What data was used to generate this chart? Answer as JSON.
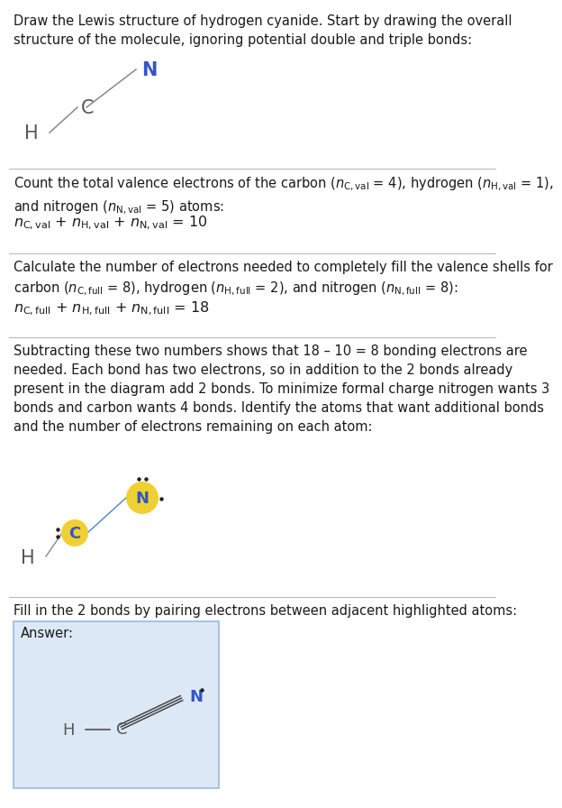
{
  "bg_color": "#ffffff",
  "text_color": "#1a1a1a",
  "N_color": "#3355cc",
  "C_color": "#555555",
  "H_color": "#555555",
  "bond_color": "#888888",
  "highlight_fill": "#f0d030",
  "highlight_label_color": "#3355cc",
  "answer_box_bg": "#dce8f5",
  "answer_box_border": "#99bbdd",
  "sep_color": "#bbbbbb",
  "dot_color": "#222222",
  "sec1_title": "Draw the Lewis structure of hydrogen cyanide. Start by drawing the overall\nstructure of the molecule, ignoring potential double and triple bonds:",
  "sec2_body": "Count the total valence electrons of the carbon (n_{C,val} = 4), hydrogen (n_{H,val} = 1),\nand nitrogen (n_{N,val} = 5) atoms:",
  "sec2_eq": "n_{C,val} + n_{H,val} + n_{N,val} = 10",
  "sec3_body": "Calculate the number of electrons needed to completely fill the valence shells for\ncarbon (n_{C,full} = 8), hydrogen (n_{H,full} = 2), and nitrogen (n_{N,full} = 8):",
  "sec3_eq": "n_{C,full} + n_{H,full} + n_{N,full} = 18",
  "sec4_body": "Subtracting these two numbers shows that 18 – 10 = 8 bonding electrons are\nneeded. Each bond has two electrons, so in addition to the 2 bonds already\npresent in the diagram add 2 bonds. To minimize formal charge nitrogen wants 3\nbonds and carbon wants 4 bonds. Identify the atoms that want additional bonds\nand the number of electrons remaining on each atom:",
  "sec5_label": "Fill in the 2 bonds by pairing electrons between adjacent highlighted atoms:",
  "answer_label": "Answer:",
  "font_size_body": 10.5,
  "font_size_eq": 11.5,
  "font_size_atom_large": 15,
  "font_size_atom_circle": 13,
  "font_size_answer_atom": 13
}
